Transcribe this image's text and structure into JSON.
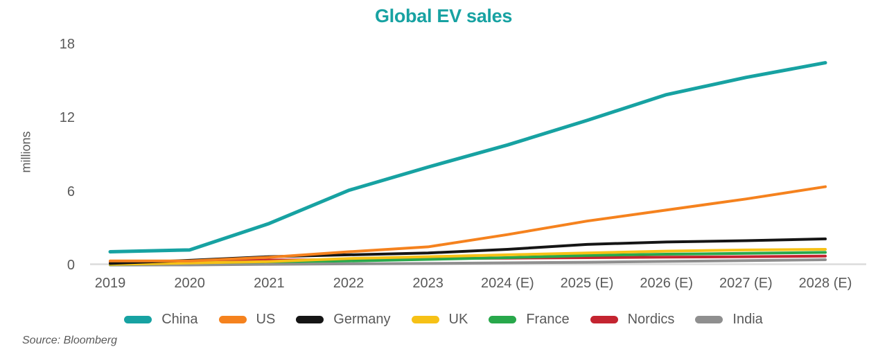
{
  "chart_data": {
    "type": "line",
    "title": "Global EV sales",
    "ylabel": "millions",
    "xlabel": "",
    "source": "Source: Bloomberg",
    "categories": [
      "2019",
      "2020",
      "2021",
      "2022",
      "2023",
      "2024 (E)",
      "2025 (E)",
      "2026 (E)",
      "2027 (E)",
      "2028 (E)"
    ],
    "y_ticks": [
      18,
      12,
      6,
      0
    ],
    "ylim": [
      0,
      18
    ],
    "grid": false,
    "legend_position": "bottom",
    "axis_text_color": "#595959",
    "baseline_color": "#dcdcdc",
    "title_color": "#17a2a2",
    "series": [
      {
        "name": "China",
        "color": "#17a2a2",
        "values": [
          1.1,
          1.25,
          3.4,
          6.1,
          8.0,
          9.8,
          11.8,
          13.9,
          15.3,
          16.5
        ]
      },
      {
        "name": "US",
        "color": "#f5821e",
        "values": [
          0.35,
          0.35,
          0.65,
          1.1,
          1.5,
          2.5,
          3.6,
          4.5,
          5.4,
          6.4
        ]
      },
      {
        "name": "Germany",
        "color": "#151515",
        "values": [
          0.15,
          0.4,
          0.7,
          0.85,
          1.0,
          1.3,
          1.7,
          1.9,
          2.0,
          2.15
        ]
      },
      {
        "name": "UK",
        "color": "#f6c116",
        "values": [
          0.08,
          0.18,
          0.3,
          0.55,
          0.7,
          0.85,
          1.0,
          1.15,
          1.25,
          1.3
        ]
      },
      {
        "name": "France",
        "color": "#28a84b",
        "values": [
          0.06,
          0.19,
          0.28,
          0.35,
          0.48,
          0.62,
          0.8,
          0.9,
          0.97,
          1.05
        ]
      },
      {
        "name": "Nordics",
        "color": "#c42430",
        "values": [
          0.3,
          0.35,
          0.42,
          0.45,
          0.55,
          0.58,
          0.62,
          0.66,
          0.7,
          0.75
        ]
      },
      {
        "name": "India",
        "color": "#8f8f8f",
        "values": [
          0.02,
          0.03,
          0.08,
          0.12,
          0.15,
          0.2,
          0.25,
          0.32,
          0.38,
          0.45
        ]
      }
    ]
  }
}
